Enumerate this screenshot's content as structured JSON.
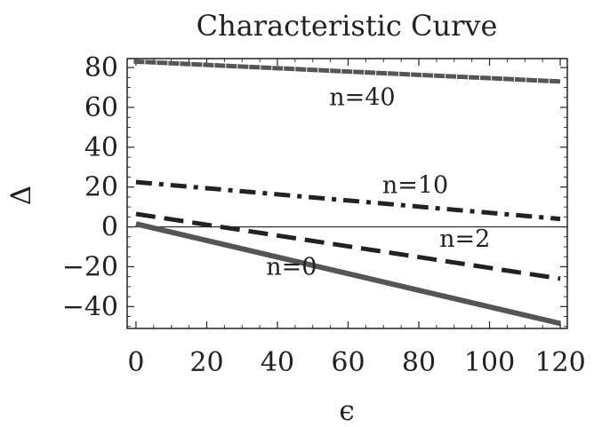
{
  "chart_data": {
    "type": "line",
    "title": "Characteristic Curve",
    "xlabel": "ϵ",
    "ylabel": "Δ",
    "xlim": [
      -2.5,
      122
    ],
    "ylim": [
      -51,
      84.5
    ],
    "xticks": [
      0,
      20,
      40,
      60,
      80,
      100,
      120
    ],
    "yticks": [
      80,
      60,
      40,
      20,
      0,
      -20,
      -40
    ],
    "tick_labels": {
      "x": [
        "0",
        "20",
        "40",
        "60",
        "80",
        "100",
        "120"
      ],
      "y": [
        "80",
        "60",
        "40",
        "20",
        "0",
        "−20",
        "−40"
      ]
    },
    "reference_line_y": 0,
    "grid": false,
    "series": [
      {
        "name": "n=0",
        "x": [
          0,
          120
        ],
        "y": [
          1.5,
          -48.5
        ],
        "style": "solid",
        "color": "#555555",
        "label_pos": [
          44,
          -24
        ]
      },
      {
        "name": "n=2",
        "x": [
          0,
          120
        ],
        "y": [
          6.5,
          -26
        ],
        "style": "dashed",
        "color": "#222222",
        "label_pos": [
          93,
          -10
        ]
      },
      {
        "name": "n=10",
        "x": [
          0,
          120
        ],
        "y": [
          22.5,
          4
        ],
        "style": "dashdot",
        "color": "#222222",
        "label_pos": [
          79,
          17
        ]
      },
      {
        "name": "n=40",
        "x": [
          0,
          120
        ],
        "y": [
          83,
          73
        ],
        "style": "dotted",
        "color": "#555555",
        "label_pos": [
          64,
          61
        ]
      }
    ]
  }
}
